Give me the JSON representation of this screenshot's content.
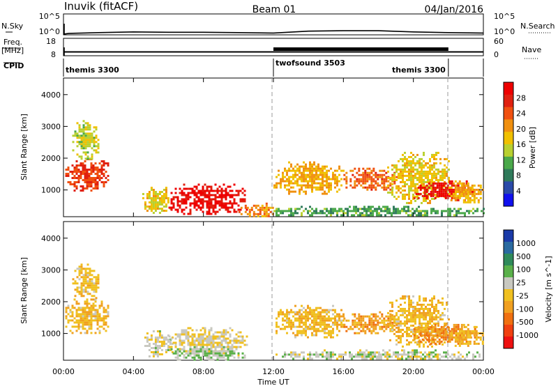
{
  "header": {
    "station": "Inuvik (fitACF)",
    "beam": "Beam 01",
    "date": "04/Jan/2016"
  },
  "top_panels": {
    "nsky_label": "N.Sky",
    "nsearch_label": "N.Search",
    "nsky_ticks": [
      "10^5",
      "10^0"
    ],
    "nsearch_ticks": [
      "10^5",
      "10^0"
    ],
    "freq_label_1": "Freq.",
    "freq_label_2": "[MHz]",
    "freq_ticks": [
      "18",
      "8"
    ],
    "nave_ticks": [
      "60",
      "0"
    ],
    "nave_label": "Nave",
    "cpid_label": "CPID",
    "cpid_segments": [
      {
        "name": "themis 3300",
        "start_hour": 0,
        "end_hour": 12
      },
      {
        "name": "twofsound 3503",
        "start_hour": 12,
        "end_hour": 22
      },
      {
        "name": "themis 3300",
        "start_hour": 22,
        "end_hour": 24
      }
    ]
  },
  "x_axis": {
    "label": "Time UT",
    "ticks": [
      "00:00",
      "04:00",
      "08:00",
      "12:00",
      "16:00",
      "20:00",
      "00:00"
    ]
  },
  "y_axis": {
    "label": "Slant Range [km]",
    "ticks": [
      "1000",
      "2000",
      "3000",
      "4000"
    ]
  },
  "colorbars": {
    "power": {
      "label": "Power [dB]",
      "ticks": [
        "4",
        "8",
        "12",
        "16",
        "20",
        "24",
        "28"
      ],
      "colors": [
        "#1010ee",
        "#2a4aa8",
        "#2f7a5a",
        "#4aa84a",
        "#b8d030",
        "#f0c000",
        "#f09010",
        "#f05010",
        "#e02010",
        "#ee0000"
      ]
    },
    "velocity": {
      "label": "Velocity [m s^-1]",
      "ticks": [
        "1000",
        "500",
        "100",
        "25",
        "-25",
        "-100",
        "-500",
        "-1000"
      ],
      "colors": [
        "#1a3aa8",
        "#2a6aa0",
        "#2f8a5a",
        "#5ab04a",
        "#c8c8c0",
        "#f0c020",
        "#f0a020",
        "#f07010",
        "#f04010",
        "#ee1010"
      ]
    }
  },
  "chart_data": [
    {
      "type": "line",
      "name": "N.Sky / N.Search",
      "x_unit": "hour UT",
      "x": [
        0,
        0.3,
        2,
        4,
        6,
        8,
        10,
        12,
        14,
        16,
        18,
        20,
        22,
        24
      ],
      "y_log10": [
        0,
        0.2,
        0.4,
        0.6,
        0.5,
        0.5,
        0.4,
        0.3,
        0.8,
        0.9,
        0.9,
        0.6,
        0.4,
        0.3
      ],
      "ylim": [
        "10^0",
        "10^5"
      ]
    },
    {
      "type": "line",
      "name": "Freq / Nave",
      "x": [
        0,
        12,
        22,
        24
      ],
      "freq_mhz": [
        10.3,
        10.3,
        10.3,
        10.3
      ],
      "nave": [
        8,
        30,
        8,
        8
      ],
      "freq_ylim": [
        8,
        18
      ],
      "nave_ylim": [
        0,
        60
      ]
    },
    {
      "type": "heatmap",
      "name": "Power",
      "x_unit": "hour UT",
      "y_unit": "km",
      "xlim": [
        0,
        24
      ],
      "ylim": [
        180,
        4500
      ],
      "zlim": [
        0,
        30
      ],
      "blobs": [
        {
          "x": [
            0.1,
            2.6
          ],
          "y": [
            1000,
            2000
          ],
          "z": 24
        },
        {
          "x": [
            0.5,
            2.0
          ],
          "y": [
            2000,
            3200
          ],
          "z": 14
        },
        {
          "x": [
            4.5,
            6.2
          ],
          "y": [
            300,
            1100
          ],
          "z": 16
        },
        {
          "x": [
            6.0,
            10.5
          ],
          "y": [
            250,
            1200
          ],
          "z": 28
        },
        {
          "x": [
            10.0,
            12.0
          ],
          "y": [
            200,
            600
          ],
          "z": 20
        },
        {
          "x": [
            12.0,
            16.0
          ],
          "y": [
            900,
            1900
          ],
          "z": 18
        },
        {
          "x": [
            12.0,
            24.0
          ],
          "y": [
            200,
            500
          ],
          "z": 10
        },
        {
          "x": [
            16.0,
            19.0
          ],
          "y": [
            1000,
            1700
          ],
          "z": 22
        },
        {
          "x": [
            18.5,
            22.0
          ],
          "y": [
            600,
            2200
          ],
          "z": 16
        },
        {
          "x": [
            20.0,
            23.5
          ],
          "y": [
            700,
            1300
          ],
          "z": 28
        },
        {
          "x": [
            22.0,
            24.0
          ],
          "y": [
            600,
            1300
          ],
          "z": 18
        }
      ]
    },
    {
      "type": "heatmap",
      "name": "Velocity",
      "x_unit": "hour UT",
      "y_unit": "km",
      "xlim": [
        0,
        24
      ],
      "ylim": [
        180,
        4500
      ],
      "zlim": [
        -1000,
        1000
      ],
      "blobs": [
        {
          "x": [
            0.1,
            2.6
          ],
          "y": [
            1000,
            2100
          ],
          "z": -150
        },
        {
          "x": [
            0.5,
            2.0
          ],
          "y": [
            2100,
            3200
          ],
          "z": -100
        },
        {
          "x": [
            4.5,
            6.2
          ],
          "y": [
            300,
            1100
          ],
          "z": 50
        },
        {
          "x": [
            6.0,
            10.5
          ],
          "y": [
            300,
            1200
          ],
          "z": 0
        },
        {
          "x": [
            6.0,
            10.5
          ],
          "y": [
            200,
            600
          ],
          "z": 200
        },
        {
          "x": [
            12.0,
            16.0
          ],
          "y": [
            900,
            1900
          ],
          "z": -150
        },
        {
          "x": [
            12.0,
            24.0
          ],
          "y": [
            200,
            500
          ],
          "z": 100
        },
        {
          "x": [
            16.0,
            19.0
          ],
          "y": [
            1000,
            1700
          ],
          "z": -300
        },
        {
          "x": [
            18.5,
            22.0
          ],
          "y": [
            600,
            2200
          ],
          "z": -150
        },
        {
          "x": [
            20.0,
            23.5
          ],
          "y": [
            700,
            1300
          ],
          "z": -400
        },
        {
          "x": [
            22.0,
            24.0
          ],
          "y": [
            600,
            1300
          ],
          "z": -200
        }
      ]
    }
  ]
}
